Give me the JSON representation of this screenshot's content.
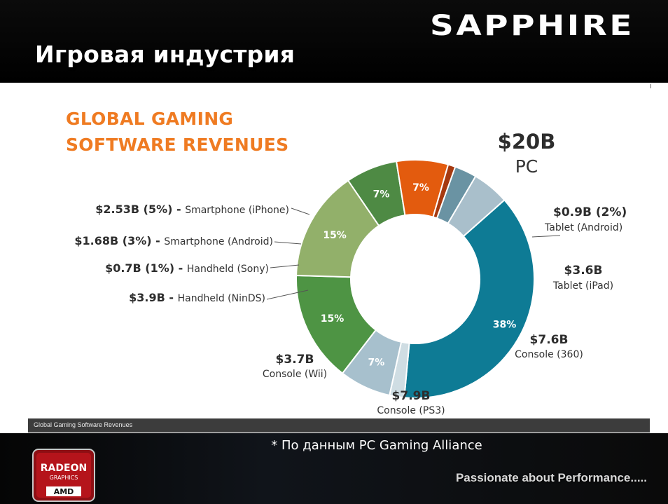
{
  "slide": {
    "title": "Игровая индустрия",
    "brand": "SAPPHIRE",
    "footnote": "* По данным PC Gaming Alliance",
    "slogan": "Passionate about Performance.....",
    "caption": "Global Gaming Software Revenues",
    "badge": {
      "line1": "RADEON",
      "line2": "GRAPHICS",
      "line3": "AMD"
    }
  },
  "chart_data": {
    "type": "pie",
    "donut": true,
    "title_lines": [
      "GLOBAL GAMING",
      "SOFTWARE REVENUES"
    ],
    "slices": [
      {
        "value": "$20B",
        "name": "PC",
        "percent": 38,
        "percent_label": "38%",
        "color": "#0e7b95"
      },
      {
        "value": "$0.9B (2%)",
        "name": "Tablet (Android)",
        "percent": 2,
        "percent_label": "",
        "color": "#cfdde3"
      },
      {
        "value": "$3.6B",
        "name": "Tablet (iPad)",
        "percent": 7,
        "percent_label": "7%",
        "color": "#a7c0cd"
      },
      {
        "value": "$7.6B",
        "name": "Console (360)",
        "percent": 15,
        "percent_label": "15%",
        "color": "#4e9444"
      },
      {
        "value": "$7.9B",
        "name": "Console (PS3)",
        "percent": 15,
        "percent_label": "15%",
        "color": "#92b06a"
      },
      {
        "value": "$3.7B",
        "name": "Console (Wii)",
        "percent": 7,
        "percent_label": "7%",
        "color": "#4e8a44"
      },
      {
        "value": "$3.9B",
        "name": "Handheld (NinDS)",
        "percent": 7,
        "percent_label": "7%",
        "color": "#e35b0e"
      },
      {
        "value": "$0.7B (1%)",
        "name": "Handheld (Sony)",
        "percent": 1,
        "percent_label": "",
        "color": "#a63a10"
      },
      {
        "value": "$1.68B (3%)",
        "name": "Smartphone (Android)",
        "percent": 3,
        "percent_label": "",
        "color": "#6a93a3"
      },
      {
        "value": "$2.53B (5%)",
        "name": "Smartphone (iPhone)",
        "percent": 5,
        "percent_label": "",
        "color": "#a9bfcb"
      }
    ],
    "legend": "labels-around"
  }
}
